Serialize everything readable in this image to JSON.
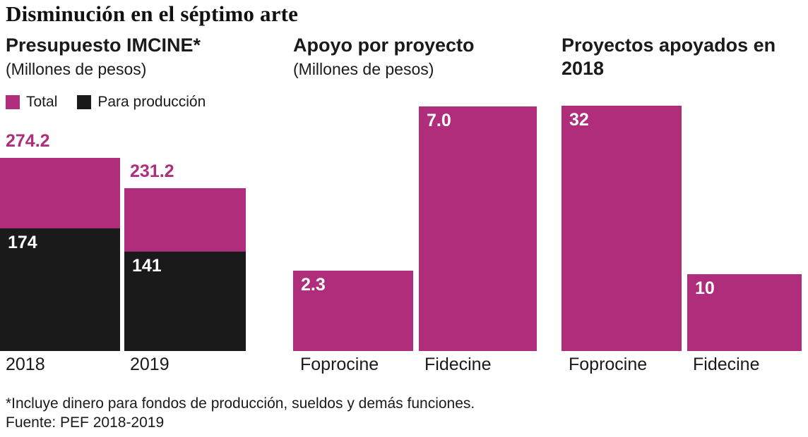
{
  "title": "Disminución en el séptimo arte",
  "colors": {
    "magenta": "#b02d7c",
    "black": "#1a1a1a"
  },
  "chart_data": [
    {
      "type": "bar",
      "title": "Presupuesto IMCINE*",
      "subtitle": "(Millones de pesos)",
      "categories": [
        "2018",
        "2019"
      ],
      "series": [
        {
          "name": "Total",
          "color": "#b02d7c",
          "values": [
            274.2,
            231.2
          ]
        },
        {
          "name": "Para producción",
          "color": "#1a1a1a",
          "values": [
            174,
            141
          ]
        }
      ],
      "labels": {
        "total": [
          "274.2",
          "231.2"
        ],
        "produccion": [
          "174",
          "141"
        ]
      },
      "legend_position": "top-left",
      "grid": false,
      "ylim": [
        0,
        350
      ]
    },
    {
      "type": "bar",
      "title": "Apoyo por proyecto",
      "subtitle": "(Millones de pesos)",
      "categories": [
        "Foprocine",
        "Fidecine"
      ],
      "values": [
        2.3,
        7.0
      ],
      "value_labels": [
        "2.3",
        "7.0"
      ],
      "grid": false,
      "ylim": [
        0,
        7.05
      ]
    },
    {
      "type": "bar",
      "title": "Proyectos apoyados en 2018",
      "subtitle": "",
      "categories": [
        "Foprocine",
        "Fidecine"
      ],
      "values": [
        32,
        10
      ],
      "value_labels": [
        "32",
        "10"
      ],
      "grid": false,
      "ylim": [
        0,
        32.2
      ]
    }
  ],
  "footnote": "*Incluye dinero para fondos de producción, sueldos y demás funciones.",
  "source": "Fuente: PEF 2018-2019"
}
